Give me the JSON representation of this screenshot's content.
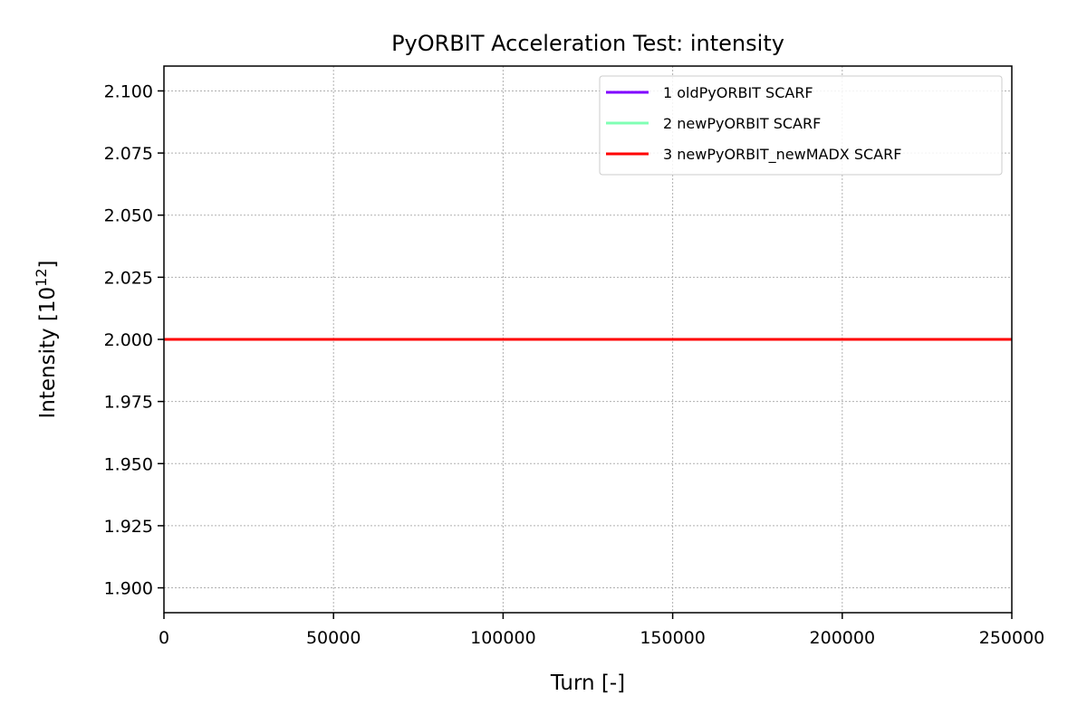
{
  "chart_data": {
    "type": "line",
    "title": "PyORBIT Acceleration Test: intensity",
    "xlabel": "Turn [-]",
    "ylabel_base": "Intensity [10",
    "ylabel_exp": "12",
    "ylabel_close": "]",
    "xlim": [
      0,
      250000
    ],
    "ylim": [
      1.89,
      2.11
    ],
    "xticks": [
      0,
      50000,
      100000,
      150000,
      200000,
      250000
    ],
    "yticks": [
      1.9,
      1.925,
      1.95,
      1.975,
      2.0,
      2.025,
      2.05,
      2.075,
      2.1
    ],
    "xtick_labels": [
      "0",
      "50000",
      "100000",
      "150000",
      "200000",
      "250000"
    ],
    "ytick_labels": [
      "1.900",
      "1.925",
      "1.950",
      "1.975",
      "2.000",
      "2.025",
      "2.050",
      "2.075",
      "2.100"
    ],
    "grid": true,
    "legend_position": "top-right",
    "series": [
      {
        "name": "1 oldPyORBIT SCARF",
        "color": "#8000ff",
        "x": [
          0,
          250000
        ],
        "y": [
          2.0,
          2.0
        ]
      },
      {
        "name": "2 newPyORBIT SCARF",
        "color": "#80ffb4",
        "x": [
          0,
          250000
        ],
        "y": [
          2.0,
          2.0
        ]
      },
      {
        "name": "3 newPyORBIT_newMADX SCARF",
        "color": "#ff0000",
        "x": [
          0,
          250000
        ],
        "y": [
          2.0,
          2.0
        ]
      }
    ]
  }
}
